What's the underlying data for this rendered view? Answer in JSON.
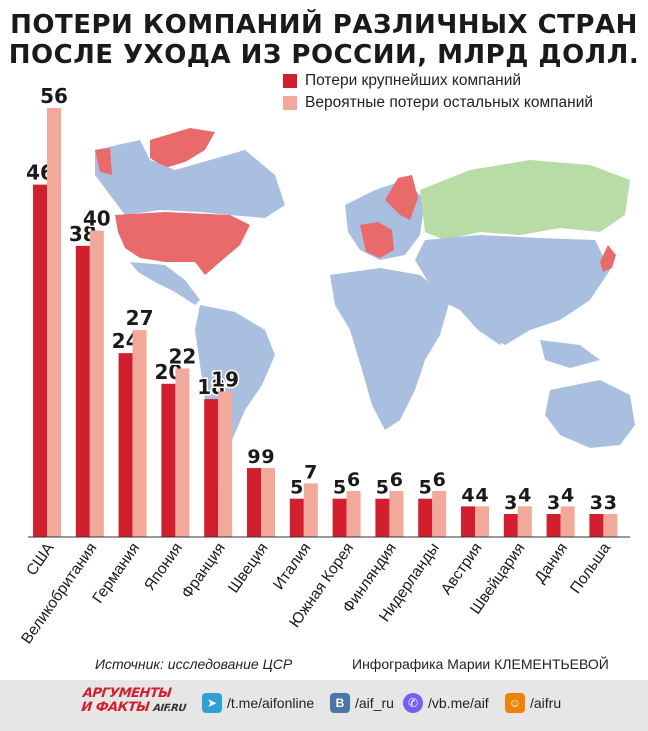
{
  "title": {
    "line1": "ПОТЕРИ КОМПАНИЙ РАЗЛИЧНЫХ СТРАН",
    "line2": "ПОСЛЕ УХОДА ИЗ РОССИИ, МЛРД ДОЛЛ."
  },
  "legend": {
    "major": "Потери крупнейших компаний",
    "other": "Вероятные потери остальных компаний"
  },
  "colors": {
    "major": "#d11f2d",
    "other": "#f2a89b",
    "map_blue": "#a9bfe0",
    "map_red": "#e86a6a",
    "map_green": "#b8dca5"
  },
  "chart_data": {
    "type": "bar",
    "title": "ПОТЕРИ КОМПАНИЙ РАЗЛИЧНЫХ СТРАН ПОСЛЕ УХОДА ИЗ РОССИИ, МЛРД ДОЛЛ.",
    "xlabel": "",
    "ylabel": "млрд долл.",
    "categories": [
      "США",
      "Великобритания",
      "Германия",
      "Япония",
      "Франция",
      "Швеция",
      "Италия",
      "Южная Корея",
      "Финляндия",
      "Нидерланды",
      "Австрия",
      "Швейцария",
      "Дания",
      "Польша"
    ],
    "series": [
      {
        "name": "Потери крупнейших компаний",
        "values": [
          46,
          38,
          24,
          20,
          18,
          9,
          5,
          5,
          5,
          5,
          4,
          3,
          3,
          3
        ]
      },
      {
        "name": "Вероятные потери остальных компаний",
        "values": [
          56,
          40,
          27,
          22,
          19,
          9,
          7,
          6,
          6,
          6,
          4,
          4,
          4,
          3
        ]
      }
    ],
    "ylim": [
      0,
      56
    ],
    "grid": false,
    "legend_position": "top-right"
  },
  "footer": {
    "source": "Источник: исследование ЦСР",
    "credit": "Инфографика Марии КЛЕМЕНТЬЕВОЙ"
  },
  "bottom_bar": {
    "logo_line1": "АРГУМЕНТЫ",
    "logo_line2": "И ФАКТЫ",
    "logo_domain": "AIF.RU",
    "telegram": "/t.me/aifonline",
    "vk": "/aif_ru",
    "viber": "/vb.me/aif",
    "ok": "/aifru"
  }
}
